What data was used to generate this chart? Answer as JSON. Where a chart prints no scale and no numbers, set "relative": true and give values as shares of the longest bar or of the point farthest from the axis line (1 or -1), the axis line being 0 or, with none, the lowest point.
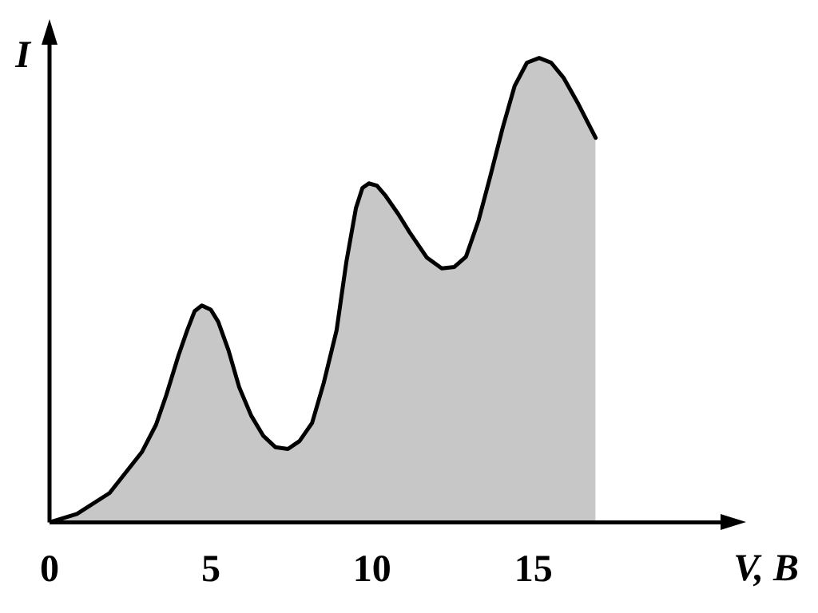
{
  "chart_data": {
    "type": "area",
    "relative": true,
    "xlabel": "V, B",
    "ylabel": "I",
    "xlim": [
      0,
      21
    ],
    "xticks": [
      0,
      5,
      10,
      15
    ],
    "series": [
      {
        "color": "#000000",
        "x": [
          0,
          0.85,
          1.86,
          2.86,
          3.3,
          3.62,
          4.0,
          4.27,
          4.5,
          4.72,
          5.0,
          5.23,
          5.55,
          5.88,
          6.25,
          6.63,
          7.0,
          7.39,
          7.75,
          8.14,
          8.5,
          8.9,
          9.2,
          9.5,
          9.7,
          9.9,
          10.15,
          10.4,
          10.8,
          11.16,
          11.7,
          12.16,
          12.55,
          12.91,
          13.3,
          13.67,
          14.05,
          14.42,
          14.8,
          15.18,
          15.55,
          15.93,
          16.4,
          16.93
        ],
        "values": [
          0,
          0.018,
          0.063,
          0.151,
          0.21,
          0.274,
          0.36,
          0.414,
          0.455,
          0.467,
          0.458,
          0.432,
          0.37,
          0.291,
          0.23,
          0.186,
          0.162,
          0.158,
          0.175,
          0.214,
          0.3,
          0.414,
          0.56,
          0.677,
          0.72,
          0.73,
          0.725,
          0.705,
          0.665,
          0.625,
          0.57,
          0.547,
          0.55,
          0.572,
          0.65,
          0.747,
          0.85,
          0.94,
          0.99,
          1,
          0.99,
          0.958,
          0.9,
          0.828
        ]
      }
    ]
  }
}
